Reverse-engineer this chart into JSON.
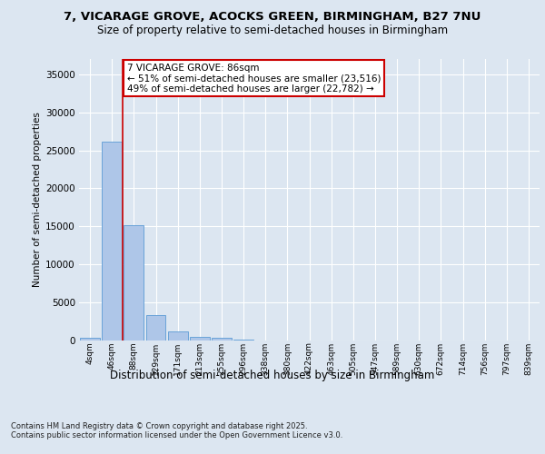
{
  "title_line1": "7, VICARAGE GROVE, ACOCKS GREEN, BIRMINGHAM, B27 7NU",
  "title_line2": "Size of property relative to semi-detached houses in Birmingham",
  "xlabel": "Distribution of semi-detached houses by size in Birmingham",
  "ylabel": "Number of semi-detached properties",
  "footnote": "Contains HM Land Registry data © Crown copyright and database right 2025.\nContains public sector information licensed under the Open Government Licence v3.0.",
  "bar_color": "#aec6e8",
  "bar_edge_color": "#5b9bd5",
  "background_color": "#dce6f1",
  "annotation_text": "7 VICARAGE GROVE: 86sqm\n← 51% of semi-detached houses are smaller (23,516)\n49% of semi-detached houses are larger (22,782) →",
  "vline_color": "#cc0000",
  "annotation_box_edge_color": "#cc0000",
  "bins": [
    "4sqm",
    "46sqm",
    "88sqm",
    "129sqm",
    "171sqm",
    "213sqm",
    "255sqm",
    "296sqm",
    "338sqm",
    "380sqm",
    "422sqm",
    "463sqm",
    "505sqm",
    "547sqm",
    "589sqm",
    "630sqm",
    "672sqm",
    "714sqm",
    "756sqm",
    "797sqm",
    "839sqm"
  ],
  "counts": [
    400,
    26100,
    15200,
    3300,
    1200,
    500,
    400,
    150,
    0,
    0,
    0,
    0,
    0,
    0,
    0,
    0,
    0,
    0,
    0,
    0,
    0
  ],
  "ylim": [
    0,
    37000
  ],
  "yticks": [
    0,
    5000,
    10000,
    15000,
    20000,
    25000,
    30000,
    35000
  ],
  "title_fontsize": 9.5,
  "subtitle_fontsize": 8.5,
  "xlabel_fontsize": 8.5,
  "ylabel_fontsize": 7.5,
  "ytick_fontsize": 7.5,
  "xtick_fontsize": 6.5,
  "annotation_fontsize": 7.5,
  "footnote_fontsize": 6.0
}
